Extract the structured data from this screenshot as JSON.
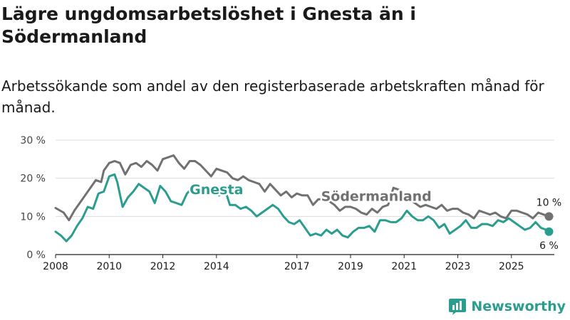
{
  "title": "Lägre ungdomsarbetslöshet i Gnesta än i Södermanland",
  "subtitle": "Arbetssökande som andel av den registerbaserade arbetskraften månad för månad.",
  "brand": "Newsworthy",
  "chart_data": {
    "type": "line",
    "title": "Lägre ungdomsarbetslöshet i Gnesta än i Södermanland",
    "ylim": [
      0,
      30
    ],
    "yticks": [
      0,
      10,
      20,
      30
    ],
    "ytick_labels": [
      "0 %",
      "10 %",
      "20 %",
      "30 %"
    ],
    "xlim": [
      2008,
      2026.6
    ],
    "xticks": [
      2008,
      2010,
      2012,
      2014,
      2017,
      2019,
      2021,
      2023,
      2025
    ],
    "xtick_labels": [
      "2008",
      "2010",
      "2012",
      "2014",
      "2017",
      "2019",
      "2021",
      "2023",
      "2025"
    ],
    "colors": {
      "sodermanland": "#717171",
      "gnesta": "#2a9d8f"
    },
    "series": [
      {
        "name": "Södermanland",
        "end_label": "10 %",
        "points": [
          [
            2008.0,
            12.2
          ],
          [
            2008.3,
            11.0
          ],
          [
            2008.5,
            9.0
          ],
          [
            2008.7,
            11.5
          ],
          [
            2008.9,
            13.5
          ],
          [
            2009.1,
            15.5
          ],
          [
            2009.3,
            17.5
          ],
          [
            2009.5,
            19.5
          ],
          [
            2009.7,
            19.0
          ],
          [
            2009.8,
            22.0
          ],
          [
            2010.0,
            24.0
          ],
          [
            2010.2,
            24.5
          ],
          [
            2010.4,
            24.0
          ],
          [
            2010.6,
            21.0
          ],
          [
            2010.8,
            23.5
          ],
          [
            2011.0,
            24.0
          ],
          [
            2011.2,
            23.0
          ],
          [
            2011.4,
            24.5
          ],
          [
            2011.6,
            23.5
          ],
          [
            2011.8,
            22.0
          ],
          [
            2012.0,
            25.0
          ],
          [
            2012.2,
            25.5
          ],
          [
            2012.4,
            26.0
          ],
          [
            2012.6,
            24.0
          ],
          [
            2012.8,
            22.5
          ],
          [
            2013.0,
            24.5
          ],
          [
            2013.2,
            24.5
          ],
          [
            2013.4,
            23.5
          ],
          [
            2013.6,
            22.0
          ],
          [
            2013.8,
            20.5
          ],
          [
            2014.0,
            22.5
          ],
          [
            2014.2,
            22.0
          ],
          [
            2014.4,
            21.5
          ],
          [
            2014.6,
            20.0
          ],
          [
            2014.8,
            19.5
          ],
          [
            2015.0,
            20.5
          ],
          [
            2015.2,
            19.5
          ],
          [
            2015.4,
            19.0
          ],
          [
            2015.6,
            18.5
          ],
          [
            2015.8,
            16.5
          ],
          [
            2016.0,
            18.5
          ],
          [
            2016.2,
            17.0
          ],
          [
            2016.4,
            15.5
          ],
          [
            2016.6,
            16.5
          ],
          [
            2016.8,
            15.0
          ],
          [
            2017.0,
            16.0
          ],
          [
            2017.2,
            15.5
          ],
          [
            2017.4,
            15.5
          ],
          [
            2017.6,
            13.0
          ],
          [
            2017.8,
            14.5
          ],
          [
            2018.0,
            14.5
          ],
          [
            2018.2,
            14.0
          ],
          [
            2018.4,
            13.0
          ],
          [
            2018.6,
            11.5
          ],
          [
            2018.8,
            12.5
          ],
          [
            2019.0,
            12.5
          ],
          [
            2019.2,
            12.0
          ],
          [
            2019.4,
            11.0
          ],
          [
            2019.6,
            10.5
          ],
          [
            2019.8,
            12.0
          ],
          [
            2020.0,
            11.0
          ],
          [
            2020.2,
            12.5
          ],
          [
            2020.4,
            13.0
          ],
          [
            2020.6,
            17.5
          ],
          [
            2020.8,
            17.0
          ],
          [
            2021.0,
            15.0
          ],
          [
            2021.2,
            14.5
          ],
          [
            2021.4,
            13.5
          ],
          [
            2021.6,
            12.5
          ],
          [
            2021.8,
            13.0
          ],
          [
            2022.0,
            12.5
          ],
          [
            2022.2,
            12.0
          ],
          [
            2022.4,
            13.0
          ],
          [
            2022.6,
            11.5
          ],
          [
            2022.8,
            12.0
          ],
          [
            2023.0,
            12.0
          ],
          [
            2023.2,
            11.0
          ],
          [
            2023.4,
            10.5
          ],
          [
            2023.6,
            9.5
          ],
          [
            2023.8,
            11.5
          ],
          [
            2024.0,
            11.0
          ],
          [
            2024.2,
            10.5
          ],
          [
            2024.4,
            11.0
          ],
          [
            2024.6,
            10.0
          ],
          [
            2024.8,
            9.5
          ],
          [
            2025.0,
            11.5
          ],
          [
            2025.2,
            11.5
          ],
          [
            2025.4,
            11.0
          ],
          [
            2025.6,
            10.5
          ],
          [
            2025.8,
            9.5
          ],
          [
            2026.0,
            11.0
          ],
          [
            2026.2,
            10.5
          ],
          [
            2026.4,
            10.0
          ]
        ]
      },
      {
        "name": "Gnesta",
        "end_label": "6 %",
        "points": [
          [
            2008.0,
            6.0
          ],
          [
            2008.2,
            5.0
          ],
          [
            2008.4,
            3.5
          ],
          [
            2008.6,
            5.0
          ],
          [
            2008.8,
            7.5
          ],
          [
            2009.0,
            9.5
          ],
          [
            2009.2,
            12.5
          ],
          [
            2009.4,
            12.0
          ],
          [
            2009.6,
            16.0
          ],
          [
            2009.8,
            16.5
          ],
          [
            2010.0,
            20.5
          ],
          [
            2010.2,
            21.0
          ],
          [
            2010.3,
            19.0
          ],
          [
            2010.5,
            12.5
          ],
          [
            2010.7,
            15.0
          ],
          [
            2010.9,
            16.5
          ],
          [
            2011.1,
            18.5
          ],
          [
            2011.3,
            17.5
          ],
          [
            2011.5,
            16.5
          ],
          [
            2011.7,
            13.5
          ],
          [
            2011.9,
            18.0
          ],
          [
            2012.1,
            16.5
          ],
          [
            2012.3,
            14.0
          ],
          [
            2012.5,
            13.5
          ],
          [
            2012.7,
            13.0
          ],
          [
            2012.9,
            16.0
          ],
          [
            2013.1,
            17.5
          ],
          [
            2013.3,
            18.5
          ],
          [
            2013.5,
            17.5
          ],
          [
            2013.7,
            16.5
          ],
          [
            2013.9,
            18.0
          ],
          [
            2014.1,
            15.5
          ],
          [
            2014.3,
            17.5
          ],
          [
            2014.5,
            13.0
          ],
          [
            2014.7,
            13.0
          ],
          [
            2014.9,
            12.0
          ],
          [
            2015.1,
            12.5
          ],
          [
            2015.3,
            11.5
          ],
          [
            2015.5,
            10.0
          ],
          [
            2015.7,
            11.0
          ],
          [
            2015.9,
            12.0
          ],
          [
            2016.1,
            13.0
          ],
          [
            2016.3,
            12.0
          ],
          [
            2016.5,
            10.0
          ],
          [
            2016.7,
            8.5
          ],
          [
            2016.9,
            8.0
          ],
          [
            2017.1,
            9.0
          ],
          [
            2017.3,
            7.0
          ],
          [
            2017.5,
            5.0
          ],
          [
            2017.7,
            5.5
          ],
          [
            2017.9,
            5.0
          ],
          [
            2018.1,
            6.5
          ],
          [
            2018.3,
            5.5
          ],
          [
            2018.5,
            6.5
          ],
          [
            2018.7,
            5.0
          ],
          [
            2018.9,
            4.5
          ],
          [
            2019.1,
            6.0
          ],
          [
            2019.3,
            7.0
          ],
          [
            2019.5,
            7.0
          ],
          [
            2019.7,
            7.5
          ],
          [
            2019.9,
            6.0
          ],
          [
            2020.1,
            9.0
          ],
          [
            2020.3,
            9.0
          ],
          [
            2020.5,
            8.5
          ],
          [
            2020.7,
            8.5
          ],
          [
            2020.9,
            9.5
          ],
          [
            2021.1,
            11.5
          ],
          [
            2021.3,
            10.0
          ],
          [
            2021.5,
            9.0
          ],
          [
            2021.7,
            9.0
          ],
          [
            2021.9,
            10.0
          ],
          [
            2022.1,
            9.0
          ],
          [
            2022.3,
            7.0
          ],
          [
            2022.5,
            8.0
          ],
          [
            2022.7,
            5.5
          ],
          [
            2022.9,
            6.5
          ],
          [
            2023.1,
            7.5
          ],
          [
            2023.3,
            9.0
          ],
          [
            2023.5,
            7.0
          ],
          [
            2023.7,
            7.0
          ],
          [
            2023.9,
            8.0
          ],
          [
            2024.1,
            8.0
          ],
          [
            2024.3,
            7.5
          ],
          [
            2024.5,
            9.0
          ],
          [
            2024.7,
            8.5
          ],
          [
            2024.9,
            9.5
          ],
          [
            2025.1,
            8.5
          ],
          [
            2025.3,
            7.5
          ],
          [
            2025.5,
            6.5
          ],
          [
            2025.7,
            7.0
          ],
          [
            2025.9,
            8.5
          ],
          [
            2026.1,
            7.0
          ],
          [
            2026.3,
            6.5
          ],
          [
            2026.4,
            6.0
          ]
        ]
      }
    ]
  }
}
